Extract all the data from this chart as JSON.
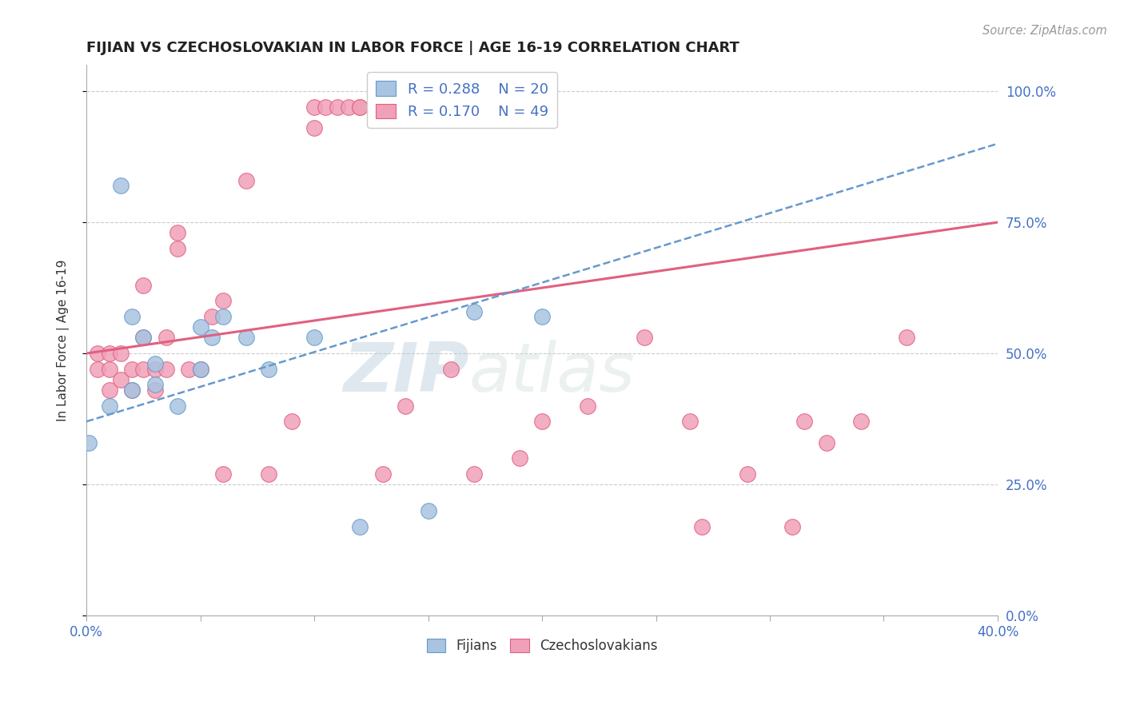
{
  "title": "FIJIAN VS CZECHOSLOVAKIAN IN LABOR FORCE | AGE 16-19 CORRELATION CHART",
  "source": "Source: ZipAtlas.com",
  "ylabel": "In Labor Force | Age 16-19",
  "xlim": [
    0.0,
    0.4
  ],
  "ylim": [
    0.0,
    1.05
  ],
  "xticks": [
    0.0,
    0.05,
    0.1,
    0.15,
    0.2,
    0.25,
    0.3,
    0.35,
    0.4
  ],
  "ytick_labels_right": [
    "0.0%",
    "25.0%",
    "50.0%",
    "75.0%",
    "100.0%"
  ],
  "ytick_vals_right": [
    0.0,
    0.25,
    0.5,
    0.75,
    1.0
  ],
  "grid_color": "#cccccc",
  "background_color": "#ffffff",
  "fijian_color": "#a8c4e0",
  "czechoslovakian_color": "#f0a0b8",
  "fijian_line_color": "#6699cc",
  "czechoslovakian_line_color": "#e06080",
  "legend_r_fijian": "R = 0.288",
  "legend_n_fijian": "N = 20",
  "legend_r_czech": "R = 0.170",
  "legend_n_czech": "N = 49",
  "watermark_zip": "ZIP",
  "watermark_atlas": "atlas",
  "fijian_x": [
    0.001,
    0.01,
    0.015,
    0.02,
    0.02,
    0.025,
    0.03,
    0.03,
    0.04,
    0.05,
    0.05,
    0.055,
    0.06,
    0.07,
    0.08,
    0.1,
    0.12,
    0.15,
    0.17,
    0.2
  ],
  "fijian_y": [
    0.33,
    0.4,
    0.82,
    0.43,
    0.57,
    0.53,
    0.44,
    0.48,
    0.4,
    0.47,
    0.55,
    0.53,
    0.57,
    0.53,
    0.47,
    0.53,
    0.17,
    0.2,
    0.58,
    0.57
  ],
  "czech_x": [
    0.005,
    0.005,
    0.01,
    0.01,
    0.01,
    0.015,
    0.015,
    0.02,
    0.02,
    0.025,
    0.025,
    0.025,
    0.03,
    0.03,
    0.035,
    0.035,
    0.04,
    0.04,
    0.045,
    0.05,
    0.055,
    0.06,
    0.06,
    0.07,
    0.08,
    0.09,
    0.1,
    0.1,
    0.105,
    0.11,
    0.115,
    0.12,
    0.12,
    0.13,
    0.14,
    0.16,
    0.17,
    0.19,
    0.2,
    0.22,
    0.245,
    0.265,
    0.27,
    0.29,
    0.31,
    0.315,
    0.325,
    0.34,
    0.36
  ],
  "czech_y": [
    0.47,
    0.5,
    0.43,
    0.47,
    0.5,
    0.45,
    0.5,
    0.43,
    0.47,
    0.47,
    0.53,
    0.63,
    0.43,
    0.47,
    0.47,
    0.53,
    0.7,
    0.73,
    0.47,
    0.47,
    0.57,
    0.27,
    0.6,
    0.83,
    0.27,
    0.37,
    0.93,
    0.97,
    0.97,
    0.97,
    0.97,
    0.97,
    0.97,
    0.27,
    0.4,
    0.47,
    0.27,
    0.3,
    0.37,
    0.4,
    0.53,
    0.37,
    0.17,
    0.27,
    0.17,
    0.37,
    0.33,
    0.37,
    0.53
  ]
}
